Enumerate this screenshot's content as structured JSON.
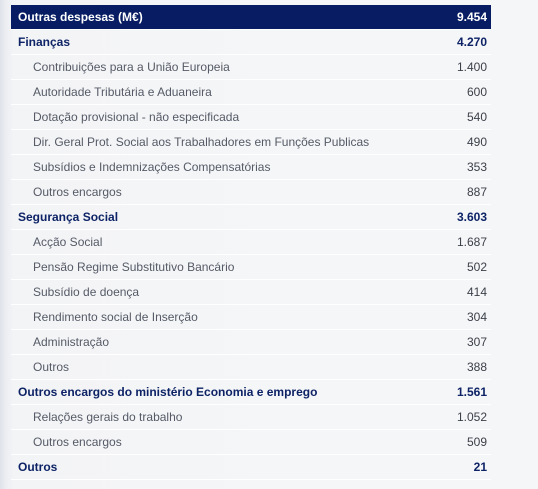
{
  "table": {
    "header": {
      "label": "Outras despesas (M€)",
      "value": "9.454"
    },
    "rows": [
      {
        "type": "group",
        "label": "Finanças",
        "value": "4.270"
      },
      {
        "type": "item",
        "label": "Contribuições para a União Europeia",
        "value": "1.400"
      },
      {
        "type": "item",
        "label": "Autoridade Tributária e Aduaneira",
        "value": "600"
      },
      {
        "type": "item",
        "label": "Dotação provisional - não especificada",
        "value": "540"
      },
      {
        "type": "item",
        "label": "Dir. Geral Prot. Social aos Trabalhadores em Funções Publicas",
        "value": "490"
      },
      {
        "type": "item",
        "label": "Subsídios e Indemnizações Compensatórias",
        "value": "353"
      },
      {
        "type": "item",
        "label": "Outros encargos",
        "value": "887"
      },
      {
        "type": "group",
        "label": "Segurança Social",
        "value": "3.603"
      },
      {
        "type": "item",
        "label": "Acção Social",
        "value": "1.687"
      },
      {
        "type": "item",
        "label": "Pensão Regime Substitutivo Bancário",
        "value": "502"
      },
      {
        "type": "item",
        "label": "Subsídio de doença",
        "value": "414"
      },
      {
        "type": "item",
        "label": "Rendimento social de Inserção",
        "value": "304"
      },
      {
        "type": "item",
        "label": "Administração",
        "value": "307"
      },
      {
        "type": "item",
        "label": "Outros",
        "value": "388"
      },
      {
        "type": "group",
        "label": "Outros encargos do ministério Economia e emprego",
        "value": "1.561"
      },
      {
        "type": "item",
        "label": "Relações gerais do trabalho",
        "value": "1.052"
      },
      {
        "type": "item",
        "label": "Outros encargos",
        "value": "509"
      },
      {
        "type": "group",
        "label": "Outros",
        "value": "21"
      }
    ]
  }
}
